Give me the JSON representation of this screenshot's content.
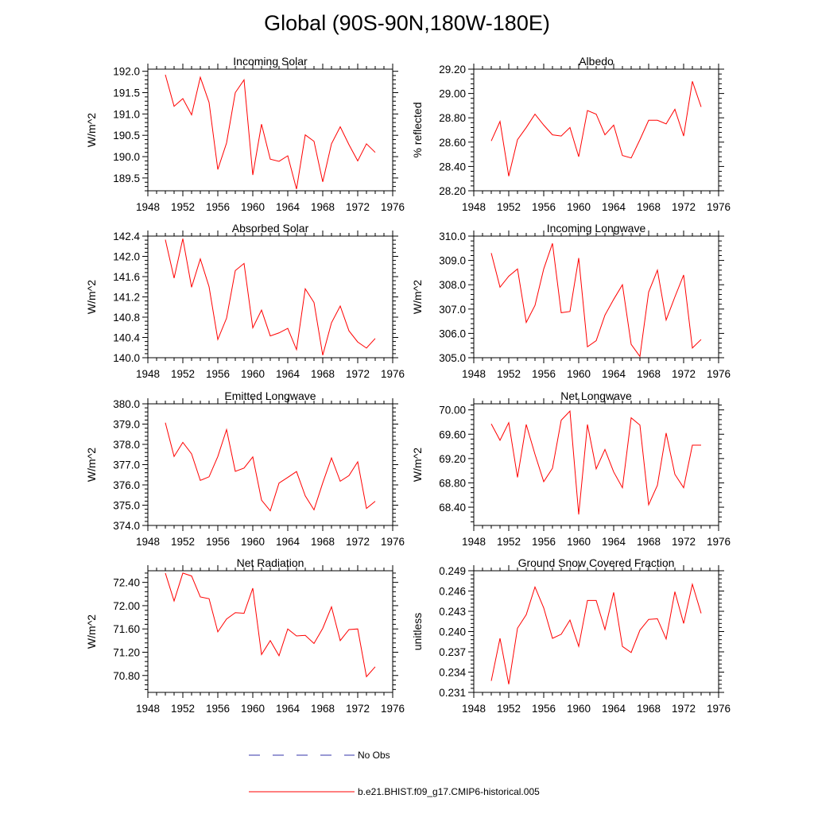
{
  "title": "Global (90S-90N,180W-180E)",
  "colors": {
    "model": "#ff0000",
    "obs": "#3333aa",
    "axis": "#000000"
  },
  "legend": [
    {
      "label": "No Obs",
      "style": "dashed",
      "color": "#3333aa"
    },
    {
      "label": "b.e21.BHIST.f09_g17.CMIP6-historical.005",
      "style": "solid",
      "color": "#ff0000"
    }
  ],
  "chart_data": [
    {
      "type": "line",
      "title": "Incoming Solar",
      "ylabel": "W/m^2",
      "xlim": [
        1948,
        1976
      ],
      "xticks": [
        1948,
        1952,
        1956,
        1960,
        1964,
        1968,
        1972,
        1976
      ],
      "ylim": [
        189.2,
        192.05
      ],
      "yticks": [
        "192.0",
        "191.5",
        "191.0",
        "190.5",
        "190.0",
        "189.5"
      ],
      "x": [
        1950,
        1951,
        1952,
        1953,
        1954,
        1955,
        1956,
        1957,
        1958,
        1959,
        1960,
        1961,
        1962,
        1963,
        1964,
        1965,
        1966,
        1967,
        1968,
        1969,
        1970,
        1971,
        1972,
        1973,
        1974
      ],
      "series": [
        {
          "name": "b.e21.BHIST.f09_g17.CMIP6-historical.005",
          "values": [
            191.92,
            191.18,
            191.36,
            190.98,
            191.86,
            191.27,
            189.7,
            190.32,
            191.5,
            191.8,
            189.57,
            190.76,
            189.94,
            189.89,
            190.02,
            189.24,
            190.51,
            190.36,
            189.41,
            190.3,
            190.7,
            190.28,
            189.9,
            190.3,
            190.1
          ]
        }
      ]
    },
    {
      "type": "line",
      "title": "Albedo",
      "ylabel": "% reflected",
      "xlim": [
        1948,
        1976
      ],
      "xticks": [
        1948,
        1952,
        1956,
        1960,
        1964,
        1968,
        1972,
        1976
      ],
      "ylim": [
        28.2,
        29.2
      ],
      "yticks": [
        "29.20",
        "29.00",
        "28.80",
        "28.60",
        "28.40",
        "28.20"
      ],
      "x": [
        1950,
        1951,
        1952,
        1953,
        1954,
        1955,
        1956,
        1957,
        1958,
        1959,
        1960,
        1961,
        1962,
        1963,
        1964,
        1965,
        1966,
        1967,
        1968,
        1969,
        1970,
        1971,
        1972,
        1973,
        1974
      ],
      "series": [
        {
          "name": "b.e21.BHIST.f09_g17.CMIP6-historical.005",
          "values": [
            28.61,
            28.77,
            28.32,
            28.62,
            28.72,
            28.83,
            28.74,
            28.66,
            28.65,
            28.72,
            28.48,
            28.86,
            28.83,
            28.66,
            28.74,
            28.49,
            28.47,
            28.62,
            28.78,
            28.78,
            28.75,
            28.87,
            28.65,
            29.1,
            28.89
          ]
        }
      ]
    },
    {
      "type": "line",
      "title": "Absorbed Solar",
      "ylabel": "W/m^2",
      "xlim": [
        1948,
        1976
      ],
      "xticks": [
        1948,
        1952,
        1956,
        1960,
        1964,
        1968,
        1972,
        1976
      ],
      "ylim": [
        140.0,
        142.4
      ],
      "yticks": [
        "142.4",
        "142.0",
        "141.6",
        "141.2",
        "140.8",
        "140.4",
        "140.0"
      ],
      "x": [
        1950,
        1951,
        1952,
        1953,
        1954,
        1955,
        1956,
        1957,
        1958,
        1959,
        1960,
        1961,
        1962,
        1963,
        1964,
        1965,
        1966,
        1967,
        1968,
        1969,
        1970,
        1971,
        1972,
        1973,
        1974
      ],
      "series": [
        {
          "name": "b.e21.BHIST.f09_g17.CMIP6-historical.005",
          "values": [
            142.33,
            141.57,
            142.35,
            141.39,
            141.95,
            141.4,
            140.36,
            140.78,
            141.72,
            141.86,
            140.59,
            140.94,
            140.43,
            140.49,
            140.58,
            140.16,
            141.36,
            141.09,
            140.05,
            140.69,
            141.02,
            140.53,
            140.31,
            140.19,
            140.38
          ]
        }
      ]
    },
    {
      "type": "line",
      "title": "Incoming Longwave",
      "ylabel": "W/m^2",
      "xlim": [
        1948,
        1976
      ],
      "xticks": [
        1948,
        1952,
        1956,
        1960,
        1964,
        1968,
        1972,
        1976
      ],
      "ylim": [
        305.0,
        310.0
      ],
      "yticks": [
        "310.0",
        "309.0",
        "308.0",
        "307.0",
        "306.0",
        "305.0"
      ],
      "x": [
        1950,
        1951,
        1952,
        1953,
        1954,
        1955,
        1956,
        1957,
        1958,
        1959,
        1960,
        1961,
        1962,
        1963,
        1964,
        1965,
        1966,
        1967,
        1968,
        1969,
        1970,
        1971,
        1972,
        1973,
        1974
      ],
      "series": [
        {
          "name": "b.e21.BHIST.f09_g17.CMIP6-historical.005",
          "values": [
            309.3,
            307.9,
            308.35,
            308.65,
            306.45,
            307.15,
            308.65,
            309.7,
            306.85,
            306.9,
            309.1,
            305.45,
            305.7,
            306.75,
            307.4,
            308.0,
            305.55,
            305.05,
            307.7,
            308.6,
            306.55,
            307.5,
            308.4,
            305.4,
            305.75
          ]
        }
      ]
    },
    {
      "type": "line",
      "title": "Emitted Longwave",
      "ylabel": "W/m^2",
      "xlim": [
        1948,
        1976
      ],
      "xticks": [
        1948,
        1952,
        1956,
        1960,
        1964,
        1968,
        1972,
        1976
      ],
      "ylim": [
        374.0,
        380.0
      ],
      "yticks": [
        "380.0",
        "379.0",
        "378.0",
        "377.0",
        "376.0",
        "375.0",
        "374.0"
      ],
      "x": [
        1950,
        1951,
        1952,
        1953,
        1954,
        1955,
        1956,
        1957,
        1958,
        1959,
        1960,
        1961,
        1962,
        1963,
        1964,
        1965,
        1966,
        1967,
        1968,
        1969,
        1970,
        1971,
        1972,
        1973,
        1974
      ],
      "series": [
        {
          "name": "b.e21.BHIST.f09_g17.CMIP6-historical.005",
          "values": [
            379.07,
            377.4,
            378.1,
            377.53,
            376.22,
            376.4,
            377.4,
            378.73,
            376.67,
            376.83,
            377.38,
            375.25,
            374.72,
            376.09,
            376.37,
            376.66,
            375.46,
            374.77,
            376.1,
            377.33,
            376.18,
            376.46,
            377.14,
            374.84,
            375.19
          ]
        }
      ]
    },
    {
      "type": "line",
      "title": "Net Longwave",
      "ylabel": "W/m^2",
      "xlim": [
        1948,
        1976
      ],
      "xticks": [
        1948,
        1952,
        1956,
        1960,
        1964,
        1968,
        1972,
        1976
      ],
      "ylim": [
        68.1,
        70.1
      ],
      "yticks": [
        "70.00",
        "69.60",
        "69.20",
        "68.80",
        "68.40"
      ],
      "x": [
        1950,
        1951,
        1952,
        1953,
        1954,
        1955,
        1956,
        1957,
        1958,
        1959,
        1960,
        1961,
        1962,
        1963,
        1964,
        1965,
        1966,
        1967,
        1968,
        1969,
        1970,
        1971,
        1972,
        1973,
        1974
      ],
      "series": [
        {
          "name": "b.e21.BHIST.f09_g17.CMIP6-historical.005",
          "values": [
            69.77,
            69.5,
            69.79,
            68.89,
            69.76,
            69.27,
            68.82,
            69.04,
            69.83,
            69.98,
            68.28,
            69.76,
            69.03,
            69.35,
            68.98,
            68.72,
            69.87,
            69.75,
            68.44,
            68.76,
            69.62,
            68.94,
            68.72,
            69.42,
            69.42
          ]
        }
      ]
    },
    {
      "type": "line",
      "title": "Net Radiation",
      "ylabel": "W/m^2",
      "xlim": [
        1948,
        1976
      ],
      "xticks": [
        1948,
        1952,
        1956,
        1960,
        1964,
        1968,
        1972,
        1976
      ],
      "ylim": [
        70.51,
        72.6
      ],
      "yticks": [
        "72.40",
        "72.00",
        "71.60",
        "71.20",
        "70.80"
      ],
      "x": [
        1950,
        1951,
        1952,
        1953,
        1954,
        1955,
        1956,
        1957,
        1958,
        1959,
        1960,
        1961,
        1962,
        1963,
        1964,
        1965,
        1966,
        1967,
        1968,
        1969,
        1970,
        1971,
        1972,
        1973,
        1974
      ],
      "series": [
        {
          "name": "b.e21.BHIST.f09_g17.CMIP6-historical.005",
          "values": [
            72.56,
            72.08,
            72.56,
            72.51,
            72.15,
            72.12,
            71.55,
            71.77,
            71.88,
            71.87,
            72.3,
            71.16,
            71.4,
            71.14,
            71.6,
            71.48,
            71.49,
            71.35,
            71.61,
            71.98,
            71.4,
            71.59,
            71.6,
            70.78,
            70.95
          ]
        }
      ]
    },
    {
      "type": "line",
      "title": "Ground Snow Covered Fraction",
      "ylabel": "unitless",
      "xlim": [
        1948,
        1976
      ],
      "xticks": [
        1948,
        1952,
        1956,
        1960,
        1964,
        1968,
        1972,
        1976
      ],
      "ylim": [
        0.231,
        0.249
      ],
      "yticks": [
        "0.249",
        "0.246",
        "0.243",
        "0.240",
        "0.237",
        "0.234",
        "0.231"
      ],
      "x": [
        1950,
        1951,
        1952,
        1953,
        1954,
        1955,
        1956,
        1957,
        1958,
        1959,
        1960,
        1961,
        1962,
        1963,
        1964,
        1965,
        1966,
        1967,
        1968,
        1969,
        1970,
        1971,
        1972,
        1973,
        1974
      ],
      "series": [
        {
          "name": "b.e21.BHIST.f09_g17.CMIP6-historical.005",
          "values": [
            0.2327,
            0.239,
            0.2322,
            0.2405,
            0.2425,
            0.2466,
            0.2435,
            0.239,
            0.2396,
            0.2417,
            0.2378,
            0.2446,
            0.2446,
            0.2403,
            0.2458,
            0.2378,
            0.2369,
            0.2402,
            0.2418,
            0.2419,
            0.2389,
            0.2459,
            0.2412,
            0.247,
            0.2427
          ]
        }
      ]
    }
  ]
}
